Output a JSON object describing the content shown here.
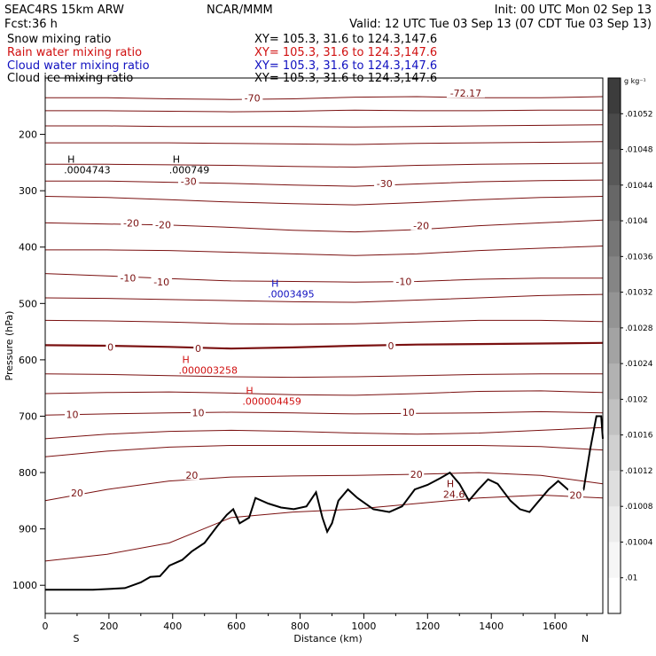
{
  "header": {
    "model": "SEAC4RS 15km ARW",
    "center": "NCAR/MMM",
    "init": "Init: 00 UTC Mon 02 Sep 13",
    "fcst_label": "Fcst:",
    "fcst_value": "36 h",
    "valid": "Valid: 12 UTC Tue 03 Sep 13 (07 CDT Tue 03 Sep 13)"
  },
  "fields": [
    {
      "name": "Snow mixing ratio",
      "xy": "XY= 105.3, 31.6 to 124.3,147.6",
      "color": "#000000"
    },
    {
      "name": "Rain water mixing ratio",
      "xy": "XY= 105.3, 31.6 to 124.3,147.6",
      "color": "#d01010"
    },
    {
      "name": "Cloud water mixing ratio",
      "xy": "XY= 105.3, 31.6 to 124.3,147.6",
      "color": "#1010c0"
    },
    {
      "name": "Cloud ice mixing ratio",
      "xy": "XY= 105.3, 31.6 to 124.3,147.6",
      "color": "#000000"
    }
  ],
  "colors": {
    "temperature_contour": "#7a1010",
    "terrain": "#000000",
    "snow": "#000000",
    "rain": "#d01010",
    "cloud": "#1010c0"
  },
  "chart_data": {
    "type": "line",
    "title": "",
    "xlabel": "Distance (km)",
    "ylabel": "Pressure (hPa)",
    "x_range": [
      0,
      1750
    ],
    "y_range_hpa": [
      1050,
      100
    ],
    "x_ticks": [
      0,
      200,
      400,
      600,
      800,
      1000,
      1200,
      1400,
      1600
    ],
    "y_ticks": [
      200,
      300,
      400,
      500,
      600,
      700,
      800,
      900,
      1000
    ],
    "x_endpoints": {
      "left": "S",
      "right": "N"
    },
    "temperature_contours": [
      {
        "level": "-70",
        "p": [
          135,
          135,
          137,
          138,
          137,
          134,
          133,
          135,
          135,
          133
        ]
      },
      {
        "level": "",
        "p": [
          158,
          158,
          159,
          160,
          159,
          157,
          158,
          158,
          157,
          157
        ]
      },
      {
        "level": "",
        "p": [
          185,
          185,
          186,
          186,
          186,
          187,
          186,
          185,
          184,
          183
        ]
      },
      {
        "level": "",
        "p": [
          215,
          215,
          215,
          216,
          217,
          218,
          216,
          215,
          214,
          213
        ]
      },
      {
        "level": "",
        "p": [
          253,
          253,
          254,
          255,
          257,
          258,
          255,
          253,
          252,
          251
        ]
      },
      {
        "level": "-30",
        "p": [
          283,
          283,
          285,
          287,
          290,
          292,
          288,
          284,
          282,
          281
        ]
      },
      {
        "level": "",
        "p": [
          310,
          312,
          316,
          320,
          323,
          325,
          321,
          316,
          312,
          310
        ]
      },
      {
        "level": "-20",
        "p": [
          357,
          359,
          361,
          365,
          370,
          373,
          369,
          362,
          357,
          352
        ]
      },
      {
        "level": "",
        "p": [
          405,
          405,
          406,
          409,
          412,
          415,
          412,
          406,
          402,
          398
        ]
      },
      {
        "level": "-10",
        "p": [
          447,
          451,
          456,
          460,
          461,
          462,
          461,
          457,
          455,
          455
        ]
      },
      {
        "level": "",
        "p": [
          490,
          491,
          493,
          495,
          497,
          498,
          494,
          490,
          486,
          484
        ]
      },
      {
        "level": "",
        "p": [
          530,
          531,
          533,
          536,
          537,
          536,
          533,
          530,
          530,
          532
        ]
      },
      {
        "level": "0",
        "p": [
          574,
          575,
          577,
          580,
          578,
          575,
          573,
          572,
          571,
          570
        ]
      },
      {
        "level": "",
        "p": [
          625,
          626,
          628,
          630,
          631,
          630,
          628,
          626,
          625,
          625
        ]
      },
      {
        "level": "",
        "p": [
          660,
          658,
          657,
          659,
          662,
          663,
          660,
          656,
          655,
          658
        ]
      },
      {
        "level": "10",
        "p": [
          698,
          696,
          694,
          693,
          694,
          696,
          695,
          694,
          692,
          694
        ]
      },
      {
        "level": "",
        "p": [
          740,
          732,
          727,
          725,
          727,
          730,
          732,
          730,
          725,
          720
        ]
      },
      {
        "level": "",
        "p": [
          772,
          762,
          755,
          752,
          752,
          752,
          752,
          752,
          754,
          760
        ]
      },
      {
        "level": "20",
        "p": [
          850,
          830,
          815,
          808,
          806,
          805,
          803,
          800,
          805,
          820
        ]
      },
      {
        "level": "",
        "p": [
          957,
          945,
          925,
          880,
          870,
          865,
          855,
          845,
          840,
          845
        ]
      }
    ],
    "terrain_pressure": [
      {
        "x": 0,
        "p": 1008
      },
      {
        "x": 150,
        "p": 1008
      },
      {
        "x": 250,
        "p": 1005
      },
      {
        "x": 300,
        "p": 995
      },
      {
        "x": 330,
        "p": 985
      },
      {
        "x": 360,
        "p": 984
      },
      {
        "x": 390,
        "p": 965
      },
      {
        "x": 430,
        "p": 955
      },
      {
        "x": 460,
        "p": 940
      },
      {
        "x": 500,
        "p": 925
      },
      {
        "x": 540,
        "p": 895
      },
      {
        "x": 570,
        "p": 875
      },
      {
        "x": 590,
        "p": 865
      },
      {
        "x": 610,
        "p": 890
      },
      {
        "x": 640,
        "p": 880
      },
      {
        "x": 660,
        "p": 845
      },
      {
        "x": 700,
        "p": 855
      },
      {
        "x": 740,
        "p": 862
      },
      {
        "x": 780,
        "p": 865
      },
      {
        "x": 820,
        "p": 860
      },
      {
        "x": 850,
        "p": 835
      },
      {
        "x": 870,
        "p": 880
      },
      {
        "x": 885,
        "p": 905
      },
      {
        "x": 900,
        "p": 890
      },
      {
        "x": 920,
        "p": 850
      },
      {
        "x": 950,
        "p": 830
      },
      {
        "x": 980,
        "p": 845
      },
      {
        "x": 1030,
        "p": 865
      },
      {
        "x": 1080,
        "p": 870
      },
      {
        "x": 1120,
        "p": 860
      },
      {
        "x": 1160,
        "p": 830
      },
      {
        "x": 1200,
        "p": 822
      },
      {
        "x": 1240,
        "p": 810
      },
      {
        "x": 1270,
        "p": 800
      },
      {
        "x": 1300,
        "p": 820
      },
      {
        "x": 1330,
        "p": 850
      },
      {
        "x": 1360,
        "p": 830
      },
      {
        "x": 1390,
        "p": 812
      },
      {
        "x": 1420,
        "p": 820
      },
      {
        "x": 1460,
        "p": 850
      },
      {
        "x": 1490,
        "p": 865
      },
      {
        "x": 1520,
        "p": 870
      },
      {
        "x": 1550,
        "p": 850
      },
      {
        "x": 1580,
        "p": 830
      },
      {
        "x": 1610,
        "p": 815
      },
      {
        "x": 1640,
        "p": 830
      },
      {
        "x": 1670,
        "p": 840
      },
      {
        "x": 1690,
        "p": 830
      },
      {
        "x": 1710,
        "p": 760
      },
      {
        "x": 1730,
        "p": 700
      },
      {
        "x": 1745,
        "p": 700
      },
      {
        "x": 1750,
        "p": 740
      }
    ],
    "contour_labels": [
      {
        "text": "-70",
        "x": 650,
        "p": 135,
        "color": "#7a1010"
      },
      {
        "text": "-72.17",
        "x": 1320,
        "p": 127,
        "color": "#7a1010"
      },
      {
        "text": "-30",
        "x": 450,
        "p": 283,
        "color": "#7a1010"
      },
      {
        "text": "-30",
        "x": 1065,
        "p": 287,
        "color": "#7a1010"
      },
      {
        "text": "-20",
        "x": 270,
        "p": 357,
        "color": "#7a1010"
      },
      {
        "text": "-20",
        "x": 370,
        "p": 360,
        "color": "#7a1010"
      },
      {
        "text": "-20",
        "x": 1180,
        "p": 362,
        "color": "#7a1010"
      },
      {
        "text": "-10",
        "x": 260,
        "p": 455,
        "color": "#7a1010"
      },
      {
        "text": "-10",
        "x": 365,
        "p": 462,
        "color": "#7a1010"
      },
      {
        "text": "-10",
        "x": 1125,
        "p": 461,
        "color": "#7a1010"
      },
      {
        "text": "0",
        "x": 205,
        "p": 577,
        "color": "#7a1010"
      },
      {
        "text": "0",
        "x": 480,
        "p": 580,
        "color": "#7a1010"
      },
      {
        "text": "0",
        "x": 1085,
        "p": 575,
        "color": "#7a1010"
      },
      {
        "text": "10",
        "x": 85,
        "p": 697,
        "color": "#7a1010"
      },
      {
        "text": "10",
        "x": 480,
        "p": 694,
        "color": "#7a1010"
      },
      {
        "text": "10",
        "x": 1140,
        "p": 693,
        "color": "#7a1010"
      },
      {
        "text": "20",
        "x": 1165,
        "p": 803,
        "color": "#7a1010"
      },
      {
        "text": "20",
        "x": 460,
        "p": 805,
        "color": "#7a1010"
      },
      {
        "text": "20",
        "x": 100,
        "p": 836,
        "color": "#7a1010"
      },
      {
        "text": "20",
        "x": 1665,
        "p": 840,
        "color": "#7a1010"
      }
    ],
    "max_markers": [
      {
        "text": ".0004743",
        "x": 120,
        "p": 260,
        "color": "#000000"
      },
      {
        "text": ".000749",
        "x": 450,
        "p": 260,
        "color": "#000000"
      },
      {
        "text": ".0003495",
        "x": 760,
        "p": 480,
        "color": "#1010c0"
      },
      {
        "text": ".000003258",
        "x": 480,
        "p": 615,
        "color": "#d01010"
      },
      {
        "text": ".000004459",
        "x": 680,
        "p": 670,
        "color": "#d01010"
      },
      {
        "text": "24.6",
        "x": 1310,
        "p": 835,
        "color": "#7a1010"
      }
    ],
    "colorbar": {
      "unit": "g kg⁻¹",
      "labels": [
        ".01052",
        ".01048",
        ".01044",
        ".0104",
        ".01036",
        ".01032",
        ".01028",
        ".01024",
        ".0102",
        ".01016",
        ".01012",
        ".01008",
        ".01004",
        ".01"
      ],
      "grays": [
        "#3c3c3c",
        "#4a4a4a",
        "#585858",
        "#676767",
        "#767676",
        "#858585",
        "#949494",
        "#a3a3a3",
        "#b2b2b2",
        "#c1c1c1",
        "#d0d0d0",
        "#dfdfdf",
        "#ececec",
        "#f6f6f6",
        "#ffffff"
      ]
    }
  }
}
